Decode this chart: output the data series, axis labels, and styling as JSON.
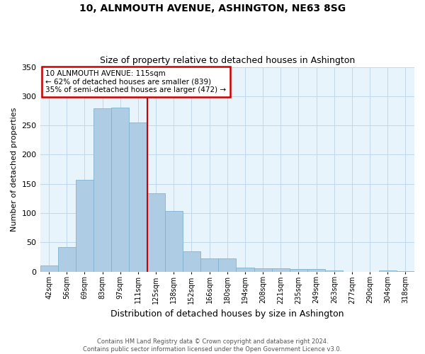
{
  "title": "10, ALNMOUTH AVENUE, ASHINGTON, NE63 8SG",
  "subtitle": "Size of property relative to detached houses in Ashington",
  "xlabel": "Distribution of detached houses by size in Ashington",
  "ylabel": "Number of detached properties",
  "bin_labels": [
    "42sqm",
    "56sqm",
    "69sqm",
    "83sqm",
    "97sqm",
    "111sqm",
    "125sqm",
    "138sqm",
    "152sqm",
    "166sqm",
    "180sqm",
    "194sqm",
    "208sqm",
    "221sqm",
    "235sqm",
    "249sqm",
    "263sqm",
    "277sqm",
    "290sqm",
    "304sqm",
    "318sqm"
  ],
  "bar_heights": [
    11,
    42,
    157,
    279,
    281,
    255,
    134,
    104,
    35,
    22,
    23,
    7,
    6,
    5,
    4,
    4,
    2,
    0,
    0,
    2,
    1
  ],
  "bar_color": "#aecce4",
  "bar_edge_color": "#7fb3d3",
  "vline_x": 5.5,
  "vline_color": "#cc0000",
  "annotation_text": "10 ALNMOUTH AVENUE: 115sqm\n← 62% of detached houses are smaller (839)\n35% of semi-detached houses are larger (472) →",
  "annotation_box_color": "#ffffff",
  "annotation_box_edge_color": "#cc0000",
  "ylim": [
    0,
    350
  ],
  "yticks": [
    0,
    50,
    100,
    150,
    200,
    250,
    300,
    350
  ],
  "footnote1": "Contains HM Land Registry data © Crown copyright and database right 2024.",
  "footnote2": "Contains public sector information licensed under the Open Government Licence v3.0.",
  "background_color": "#ffffff",
  "plot_bg_color": "#e8f4fc",
  "grid_color": "#c0d8ec"
}
